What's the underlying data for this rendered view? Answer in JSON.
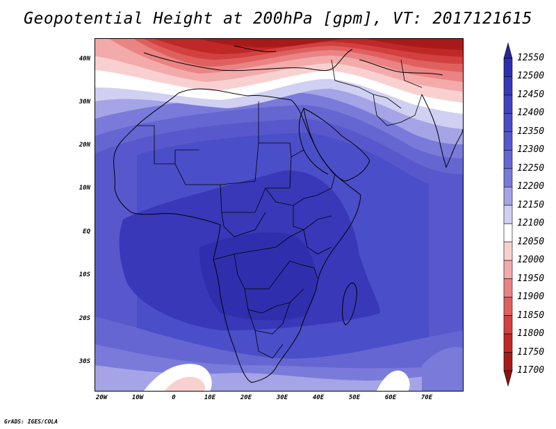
{
  "title": "Geopotential Height at 200hPa [gpm], VT: 2017121615",
  "credit": "GrADS: IGES/COLA",
  "map": {
    "variable": "Geopotential Height",
    "level": "200hPa",
    "units": "gpm",
    "valid_time": "2017121615",
    "lat_labels": [
      "40N",
      "30N",
      "20N",
      "10N",
      "EQ",
      "10S",
      "20S",
      "30S"
    ],
    "lon_labels": [
      "20W",
      "10W",
      "0",
      "10E",
      "20E",
      "30E",
      "40E",
      "50E",
      "60E",
      "70E"
    ]
  },
  "colorbar": {
    "levels": [
      "12550",
      "12500",
      "12450",
      "12400",
      "12350",
      "12300",
      "12250",
      "12200",
      "12150",
      "12100",
      "12050",
      "12000",
      "11950",
      "11900",
      "11850",
      "11800",
      "11750",
      "11700"
    ],
    "colors": [
      "#27269a",
      "#2f2fae",
      "#3838b8",
      "#4242c0",
      "#4c4cc6",
      "#5858cc",
      "#6666d2",
      "#7a7ada",
      "#a4a4e6",
      "#d0d0f2",
      "#ffffff",
      "#f9d0d0",
      "#f2aaaa",
      "#ea8484",
      "#e06060",
      "#d24040",
      "#c02828",
      "#a81a1a",
      "#901010"
    ]
  },
  "colors": {
    "deep_blue": "#2f2fae",
    "mid_blue": "#4a4ec8",
    "light_blue": "#a4a4e6",
    "white": "#ffffff",
    "light_red": "#f2aaaa",
    "deep_red": "#a81a1a"
  }
}
